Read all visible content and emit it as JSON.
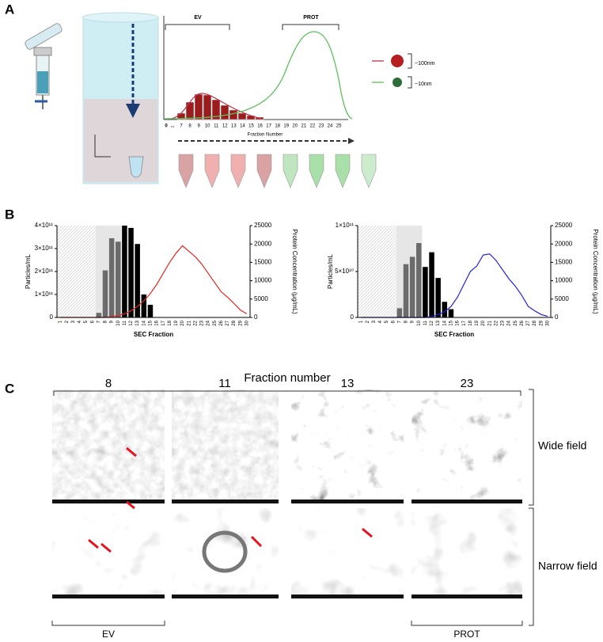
{
  "panel_a": {
    "label": "A",
    "brackets": [
      "EV",
      "PROT"
    ],
    "x_labels": [
      "0",
      "...",
      "7",
      "8",
      "9",
      "10",
      "11",
      "12",
      "13",
      "14",
      "15",
      "16",
      "17",
      "18",
      "19",
      "20",
      "21",
      "22",
      "23",
      "24",
      "25"
    ],
    "x_axis_title": "Fraction Number",
    "legend": [
      "~100nm",
      "~10nm"
    ]
  },
  "panel_b": {
    "label": "B"
  },
  "chart_data": [
    {
      "type": "bar",
      "x_label": "SEC Fraction",
      "y_label": "Particles/mL",
      "y2_label": "Protein Concentration  (µg/mL)",
      "categories": [
        "1",
        "2",
        "3",
        "4",
        "5",
        "6",
        "7",
        "8",
        "9",
        "10",
        "11",
        "12",
        "13",
        "14",
        "15",
        "16",
        "17",
        "18",
        "19",
        "20",
        "21",
        "22",
        "23",
        "24",
        "25",
        "26",
        "27",
        "28",
        "29",
        "30"
      ],
      "ylim": [
        0,
        400000000000.0
      ],
      "yticks": [
        0,
        {
          "value": 100000000000.0,
          "label": "1×10¹¹"
        },
        {
          "value": 200000000000.0,
          "label": "2×10¹¹"
        },
        {
          "value": 300000000000.0,
          "label": "3×10¹¹"
        },
        {
          "value": 400000000000.0,
          "label": "4×10¹¹"
        }
      ],
      "y2lim": [
        0,
        25000
      ],
      "y2ticks": [
        0,
        5000,
        10000,
        15000,
        20000,
        25000
      ],
      "series": [
        {
          "color": "#6b6b6b",
          "values": [
            null,
            null,
            null,
            null,
            null,
            null,
            20000000000.0,
            205000000000.0,
            345000000000.0,
            330000000000.0,
            null,
            null,
            null,
            null,
            null,
            null,
            null,
            null,
            null,
            null,
            null,
            null,
            null,
            null,
            null,
            null,
            null,
            null,
            null,
            null
          ]
        },
        {
          "color": "#000000",
          "values": [
            null,
            null,
            null,
            null,
            null,
            null,
            null,
            null,
            null,
            null,
            400000000000.0,
            390000000000.0,
            320000000000.0,
            100000000000.0,
            55000000000.0,
            null,
            null,
            null,
            null,
            null,
            null,
            null,
            null,
            null,
            null,
            null,
            null,
            null,
            null,
            null
          ]
        },
        {
          "type": "line",
          "axis": "y2",
          "color": "#e8251f",
          "values": [
            0,
            0,
            0,
            0,
            0,
            0,
            0,
            0,
            200,
            500,
            1000,
            1800,
            3000,
            4500,
            6500,
            9000,
            12000,
            15000,
            17500,
            19500,
            18000,
            16500,
            14500,
            12000,
            9500,
            7000,
            5500,
            3800,
            2000,
            1000
          ]
        }
      ]
    },
    {
      "type": "bar",
      "x_label": "SEC Fraction",
      "y_label": "Particles/mL",
      "y2_label": "Protein Concentration  (µg/mL)",
      "categories": [
        "1",
        "2",
        "3",
        "4",
        "5",
        "6",
        "7",
        "8",
        "9",
        "10",
        "11",
        "12",
        "13",
        "14",
        "15",
        "16",
        "17",
        "18",
        "19",
        "20",
        "21",
        "22",
        "23",
        "24",
        "25",
        "26",
        "27",
        "28",
        "29",
        "30"
      ],
      "ylim": [
        0,
        100000000000.0
      ],
      "yticks": [
        0,
        {
          "value": 50000000000.0,
          "label": "5×10¹⁰"
        },
        {
          "value": 100000000000.0,
          "label": "1×10¹¹"
        }
      ],
      "y2lim": [
        0,
        25000
      ],
      "y2ticks": [
        0,
        5000,
        10000,
        15000,
        20000,
        25000
      ],
      "series": [
        {
          "color": "#6b6b6b",
          "values": [
            null,
            null,
            null,
            null,
            null,
            null,
            10000000000.0,
            58000000000.0,
            66000000000.0,
            81000000000.0,
            null,
            null,
            null,
            null,
            null,
            null,
            null,
            null,
            null,
            null,
            null,
            null,
            null,
            null,
            null,
            null,
            null,
            null,
            null,
            null
          ]
        },
        {
          "color": "#000000",
          "values": [
            null,
            null,
            null,
            null,
            null,
            null,
            null,
            null,
            null,
            null,
            55000000000.0,
            71000000000.0,
            43000000000.0,
            17000000000.0,
            9000000000.0,
            null,
            null,
            null,
            null,
            null,
            null,
            null,
            null,
            null,
            null,
            null,
            null,
            null,
            null,
            null
          ]
        },
        {
          "type": "line",
          "axis": "y2",
          "color": "#1f1fe0",
          "values": [
            0,
            0,
            0,
            0,
            0,
            0,
            0,
            0,
            0,
            0,
            0,
            200,
            800,
            1500,
            3000,
            5500,
            9000,
            12500,
            14000,
            17000,
            17300,
            15500,
            13000,
            10500,
            8500,
            6000,
            3000,
            1800,
            800,
            300
          ]
        }
      ]
    }
  ],
  "panel_c": {
    "label": "C",
    "title": "Fraction number",
    "columns": [
      "8",
      "11",
      "13",
      "23"
    ],
    "rows": [
      "Wide field",
      "Narrow field"
    ],
    "groups": [
      "EV",
      "PROT"
    ]
  }
}
